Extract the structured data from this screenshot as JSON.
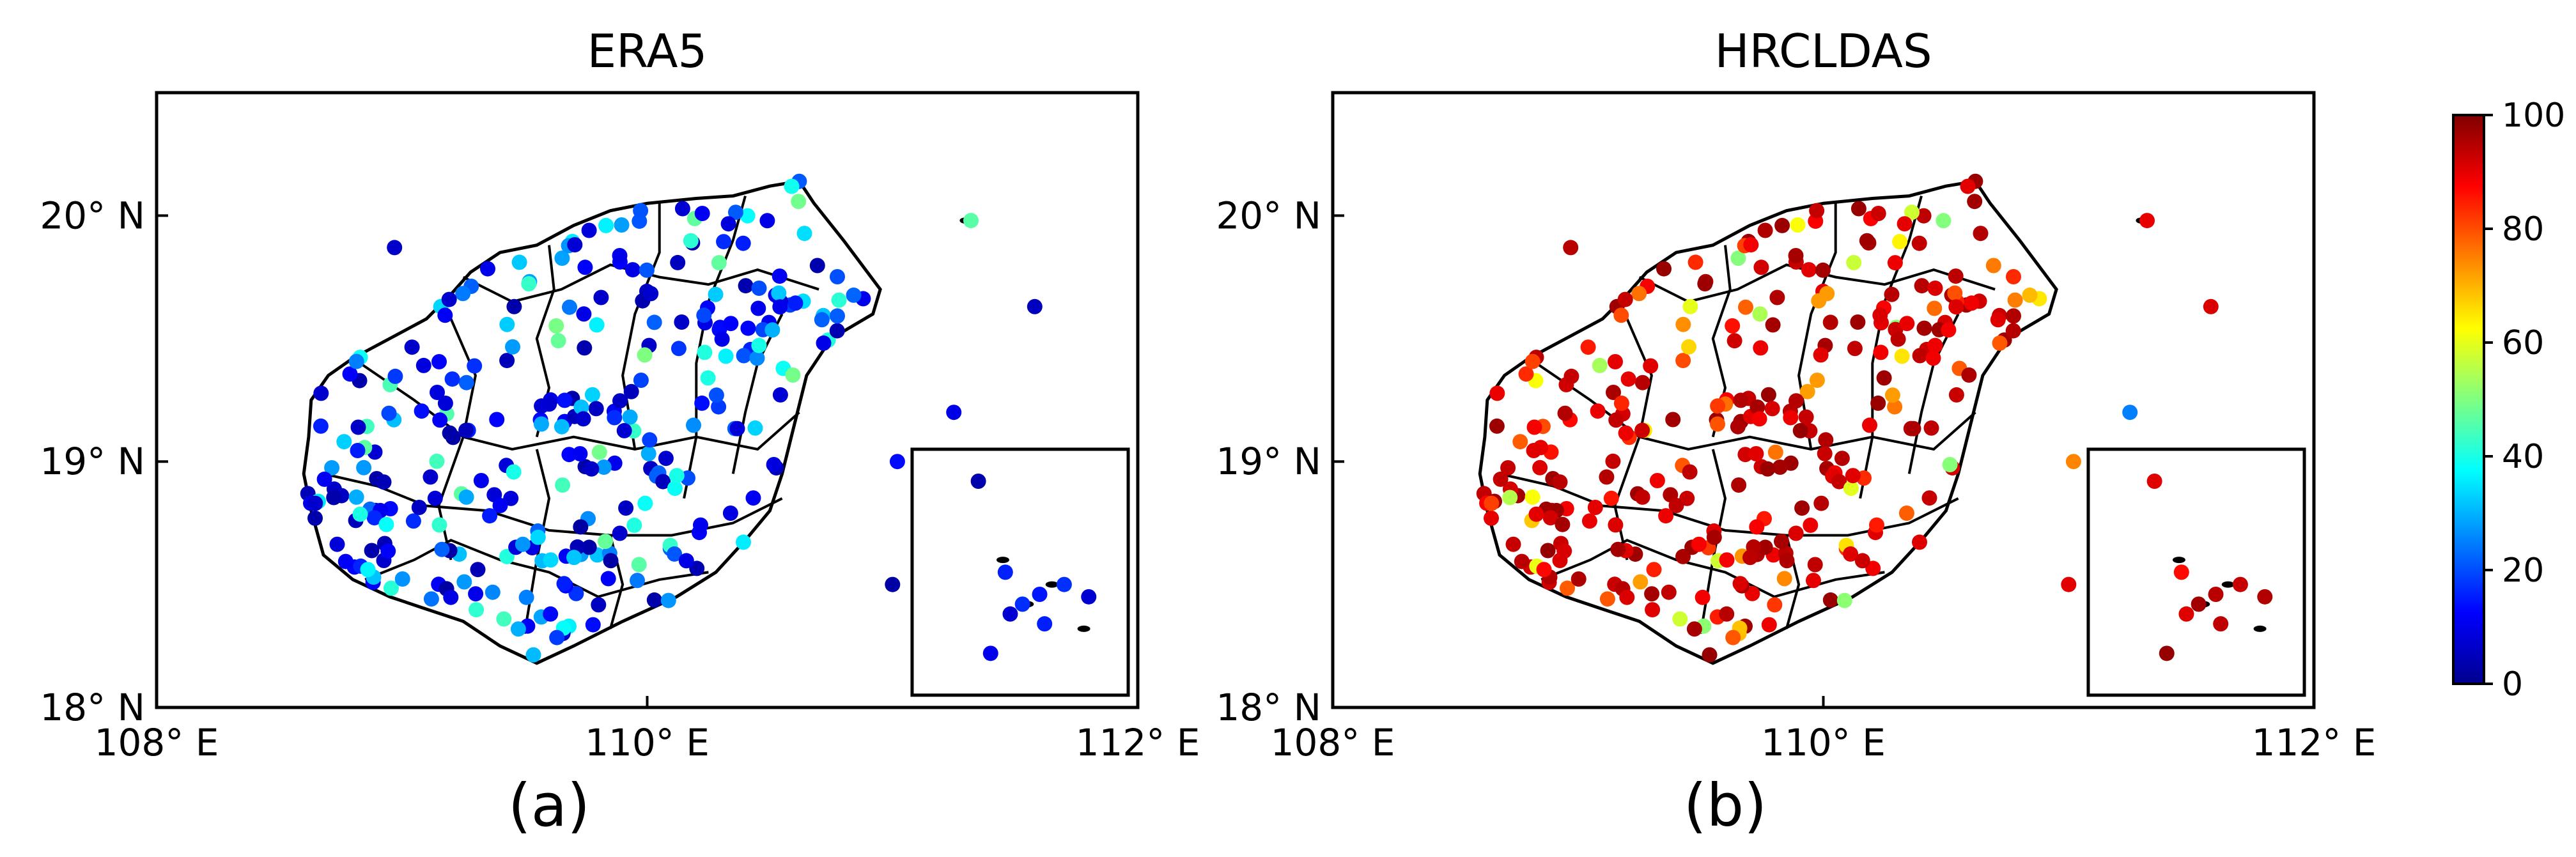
{
  "chart_data": [
    {
      "type": "scatter",
      "title": "ERA5",
      "panel_label": "(a)",
      "xlim": [
        108,
        112
      ],
      "ylim": [
        18,
        20.5
      ],
      "xticks": [
        {
          "value": 108,
          "label": "108° E"
        },
        {
          "value": 110,
          "label": "110° E"
        },
        {
          "value": 112,
          "label": "112° E"
        }
      ],
      "yticks": [
        {
          "value": 18,
          "label": "18° N"
        },
        {
          "value": 19,
          "label": "19° N"
        },
        {
          "value": 20,
          "label": "20° N"
        }
      ],
      "color_value_range": [
        0,
        100
      ]
    },
    {
      "type": "scatter",
      "title": "HRCLDAS",
      "panel_label": "(b)",
      "xlim": [
        108,
        112
      ],
      "ylim": [
        18,
        20.5
      ],
      "xticks": [
        {
          "value": 108,
          "label": "108° E"
        },
        {
          "value": 110,
          "label": "110° E"
        },
        {
          "value": 112,
          "label": "112° E"
        }
      ],
      "yticks": [
        {
          "value": 18,
          "label": "18° N"
        },
        {
          "value": 19,
          "label": "19° N"
        },
        {
          "value": 20,
          "label": "20° N"
        }
      ],
      "color_value_range": [
        0,
        100
      ]
    }
  ],
  "colorbar": {
    "range": [
      0,
      100
    ],
    "ticks": [
      "0",
      "20",
      "40",
      "60",
      "80",
      "100"
    ],
    "colormap": [
      "#00008f",
      "#0000ff",
      "#0080ff",
      "#00ffff",
      "#80ff80",
      "#ffff00",
      "#ff8000",
      "#ff0000",
      "#800000"
    ]
  },
  "colors": {
    "coastline": "#000000",
    "axes": "#000000"
  }
}
